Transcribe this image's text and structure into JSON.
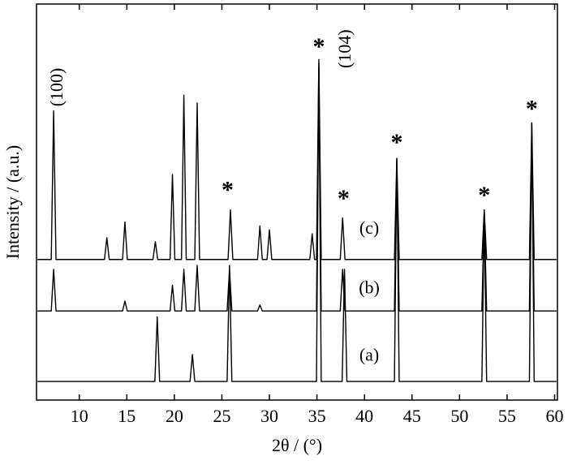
{
  "chart_data": {
    "type": "line",
    "xlabel": "2θ / (°)",
    "ylabel": "Intensity / (a.u.)",
    "xlim": [
      5.5,
      60.3
    ],
    "ylim": [
      0,
      100
    ],
    "xticks": [
      10,
      15,
      20,
      25,
      30,
      35,
      40,
      45,
      50,
      55,
      60
    ],
    "series": [
      {
        "color": "#000000",
        "x": [
          5.6,
          17.95,
          18.2,
          18.45,
          21.65,
          21.9,
          22.15,
          25.55,
          25.8,
          26.05,
          34.95,
          35.2,
          35.45,
          37.65,
          37.9,
          38.15,
          43.15,
          43.4,
          43.65,
          52.35,
          52.6,
          52.85,
          57.35,
          57.6,
          57.85,
          60.2
        ],
        "values": [
          4.7,
          4.7,
          21,
          4.7,
          4.7,
          11.5,
          4.7,
          4.7,
          34,
          4.7,
          4.7,
          84,
          4.7,
          4.7,
          33,
          4.7,
          4.7,
          61,
          4.7,
          4.7,
          47,
          4.7,
          4.7,
          70,
          4.7,
          4.7
        ]
      },
      {
        "color": "#000000",
        "x": [
          5.6,
          7.05,
          7.3,
          7.55,
          14.55,
          14.8,
          15.05,
          19.55,
          19.8,
          20.05,
          20.75,
          21.0,
          21.25,
          22.15,
          22.4,
          22.65,
          25.55,
          25.8,
          26.05,
          28.75,
          29.0,
          29.25,
          34.95,
          35.2,
          35.45,
          37.45,
          37.7,
          37.95,
          43.15,
          43.4,
          43.65,
          52.35,
          52.6,
          52.85,
          57.35,
          57.6,
          57.85,
          60.2
        ],
        "values": [
          22.5,
          22.5,
          33,
          22.5,
          22.5,
          25,
          22.5,
          22.5,
          29,
          22.5,
          22.5,
          33,
          22.5,
          22.5,
          34,
          22.5,
          22.5,
          33,
          22.5,
          22.5,
          24,
          22.5,
          22.5,
          85,
          22.5,
          22.5,
          33,
          22.5,
          22.5,
          60,
          22.5,
          22.5,
          48,
          22.5,
          22.5,
          68,
          22.5,
          22.5
        ]
      },
      {
        "color": "#000000",
        "x": [
          5.6,
          7.05,
          7.3,
          7.55,
          12.65,
          12.9,
          13.15,
          14.55,
          14.8,
          15.05,
          17.75,
          18.0,
          18.25,
          19.55,
          19.8,
          20.05,
          20.75,
          21.0,
          21.25,
          22.15,
          22.4,
          22.65,
          25.65,
          25.9,
          26.15,
          28.75,
          29.0,
          29.25,
          29.75,
          30.0,
          30.25,
          34.25,
          34.5,
          34.75,
          34.95,
          35.2,
          35.45,
          37.45,
          37.7,
          37.95,
          43.15,
          43.4,
          43.65,
          52.35,
          52.6,
          52.85,
          57.35,
          57.6,
          57.85,
          60.2
        ],
        "values": [
          35.5,
          35.5,
          73,
          35.5,
          35.5,
          41,
          35.5,
          35.5,
          45,
          35.5,
          35.5,
          40,
          35.5,
          35.5,
          57,
          35.5,
          35.5,
          77,
          35.5,
          35.5,
          75,
          35.5,
          35.5,
          48,
          35.5,
          35.5,
          44,
          35.5,
          35.5,
          43,
          35.5,
          35.5,
          42,
          35.5,
          35.5,
          86,
          35.5,
          35.5,
          46,
          35.5,
          35.5,
          61,
          35.5,
          35.5,
          48,
          35.5,
          35.5,
          70,
          35.5,
          35.5
        ]
      }
    ],
    "annotations": [
      {
        "text": "(100)",
        "x": 7.8,
        "y": 79,
        "rotate": true
      },
      {
        "text": "(104)",
        "x": 38.1,
        "y": 88.7,
        "rotate": true
      },
      {
        "text": "*",
        "x": 25.6,
        "y": 52.5
      },
      {
        "text": "*",
        "x": 35.2,
        "y": 88.7
      },
      {
        "text": "*",
        "x": 37.8,
        "y": 50.4
      },
      {
        "text": "*",
        "x": 43.4,
        "y": 64.5
      },
      {
        "text": "*",
        "x": 52.6,
        "y": 51.2
      },
      {
        "text": "*",
        "x": 57.6,
        "y": 73
      },
      {
        "text": "(c)",
        "x": 40.5,
        "y": 43
      },
      {
        "text": "(b)",
        "x": 40.5,
        "y": 28
      },
      {
        "text": "(a)",
        "x": 40.5,
        "y": 11
      }
    ]
  }
}
